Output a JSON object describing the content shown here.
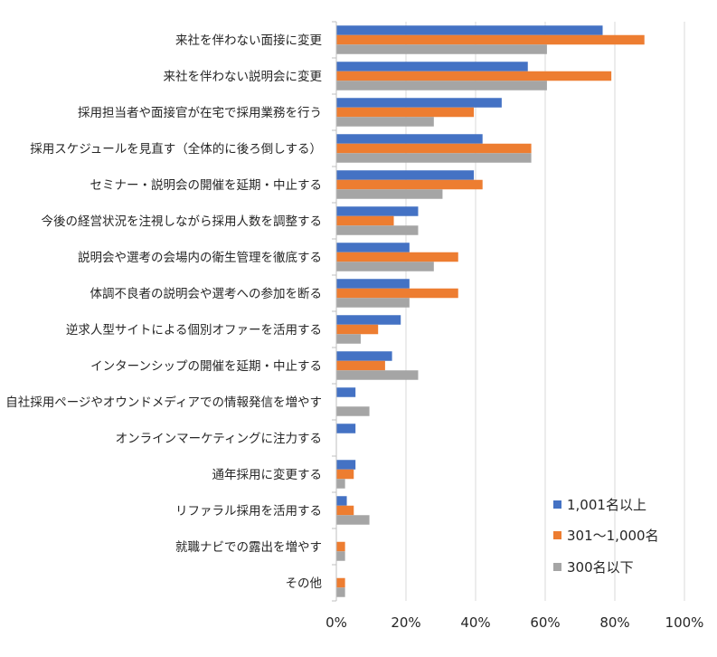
{
  "chart_data": {
    "type": "bar",
    "orientation": "horizontal",
    "categories": [
      "来社を伴わない面接に変更",
      "来社を伴わない説明会に変更",
      "採用担当者や面接官が在宅で採用業務を行う",
      "採用スケジュールを見直す（全体的に後ろ倒しする）",
      "セミナー・説明会の開催を延期・中止する",
      "今後の経営状況を注視しながら採用人数を調整する",
      "説明会や選考の会場内の衛生管理を徹底する",
      "体調不良者の説明会や選考への参加を断る",
      "逆求人型サイトによる個別オファーを活用する",
      "インターンシップの開催を延期・中止する",
      "自社採用ページやオウンドメディアでの情報発信を増やす",
      "オンラインマーケティングに注力する",
      "通年採用に変更する",
      "リファラル採用を活用する",
      "就職ナビでの露出を増やす",
      "その他"
    ],
    "series": [
      {
        "name": "1,001名以上",
        "color": "#4472C4",
        "values": [
          76.5,
          55.0,
          47.5,
          42.0,
          39.5,
          23.5,
          21.0,
          21.0,
          18.5,
          16.0,
          5.5,
          5.5,
          5.5,
          3.0,
          0,
          0
        ]
      },
      {
        "name": "301〜1,000名",
        "color": "#ED7D31",
        "values": [
          88.5,
          79.0,
          39.5,
          56.0,
          42.0,
          16.5,
          35.0,
          35.0,
          12.0,
          14.0,
          0,
          0,
          5.0,
          5.0,
          2.5,
          2.5
        ]
      },
      {
        "name": "300名以下",
        "color": "#A5A5A5",
        "values": [
          60.5,
          60.5,
          28.0,
          56.0,
          30.5,
          23.5,
          28.0,
          21.0,
          7.0,
          23.5,
          9.5,
          0,
          2.5,
          9.5,
          2.5,
          2.5
        ]
      }
    ],
    "xlim": [
      0,
      100
    ],
    "x_ticks": [
      "0%",
      "20%",
      "40%",
      "60%",
      "80%",
      "100%"
    ],
    "grid": true,
    "legend_position": "bottom-right",
    "title": "",
    "xlabel": "",
    "ylabel": ""
  }
}
